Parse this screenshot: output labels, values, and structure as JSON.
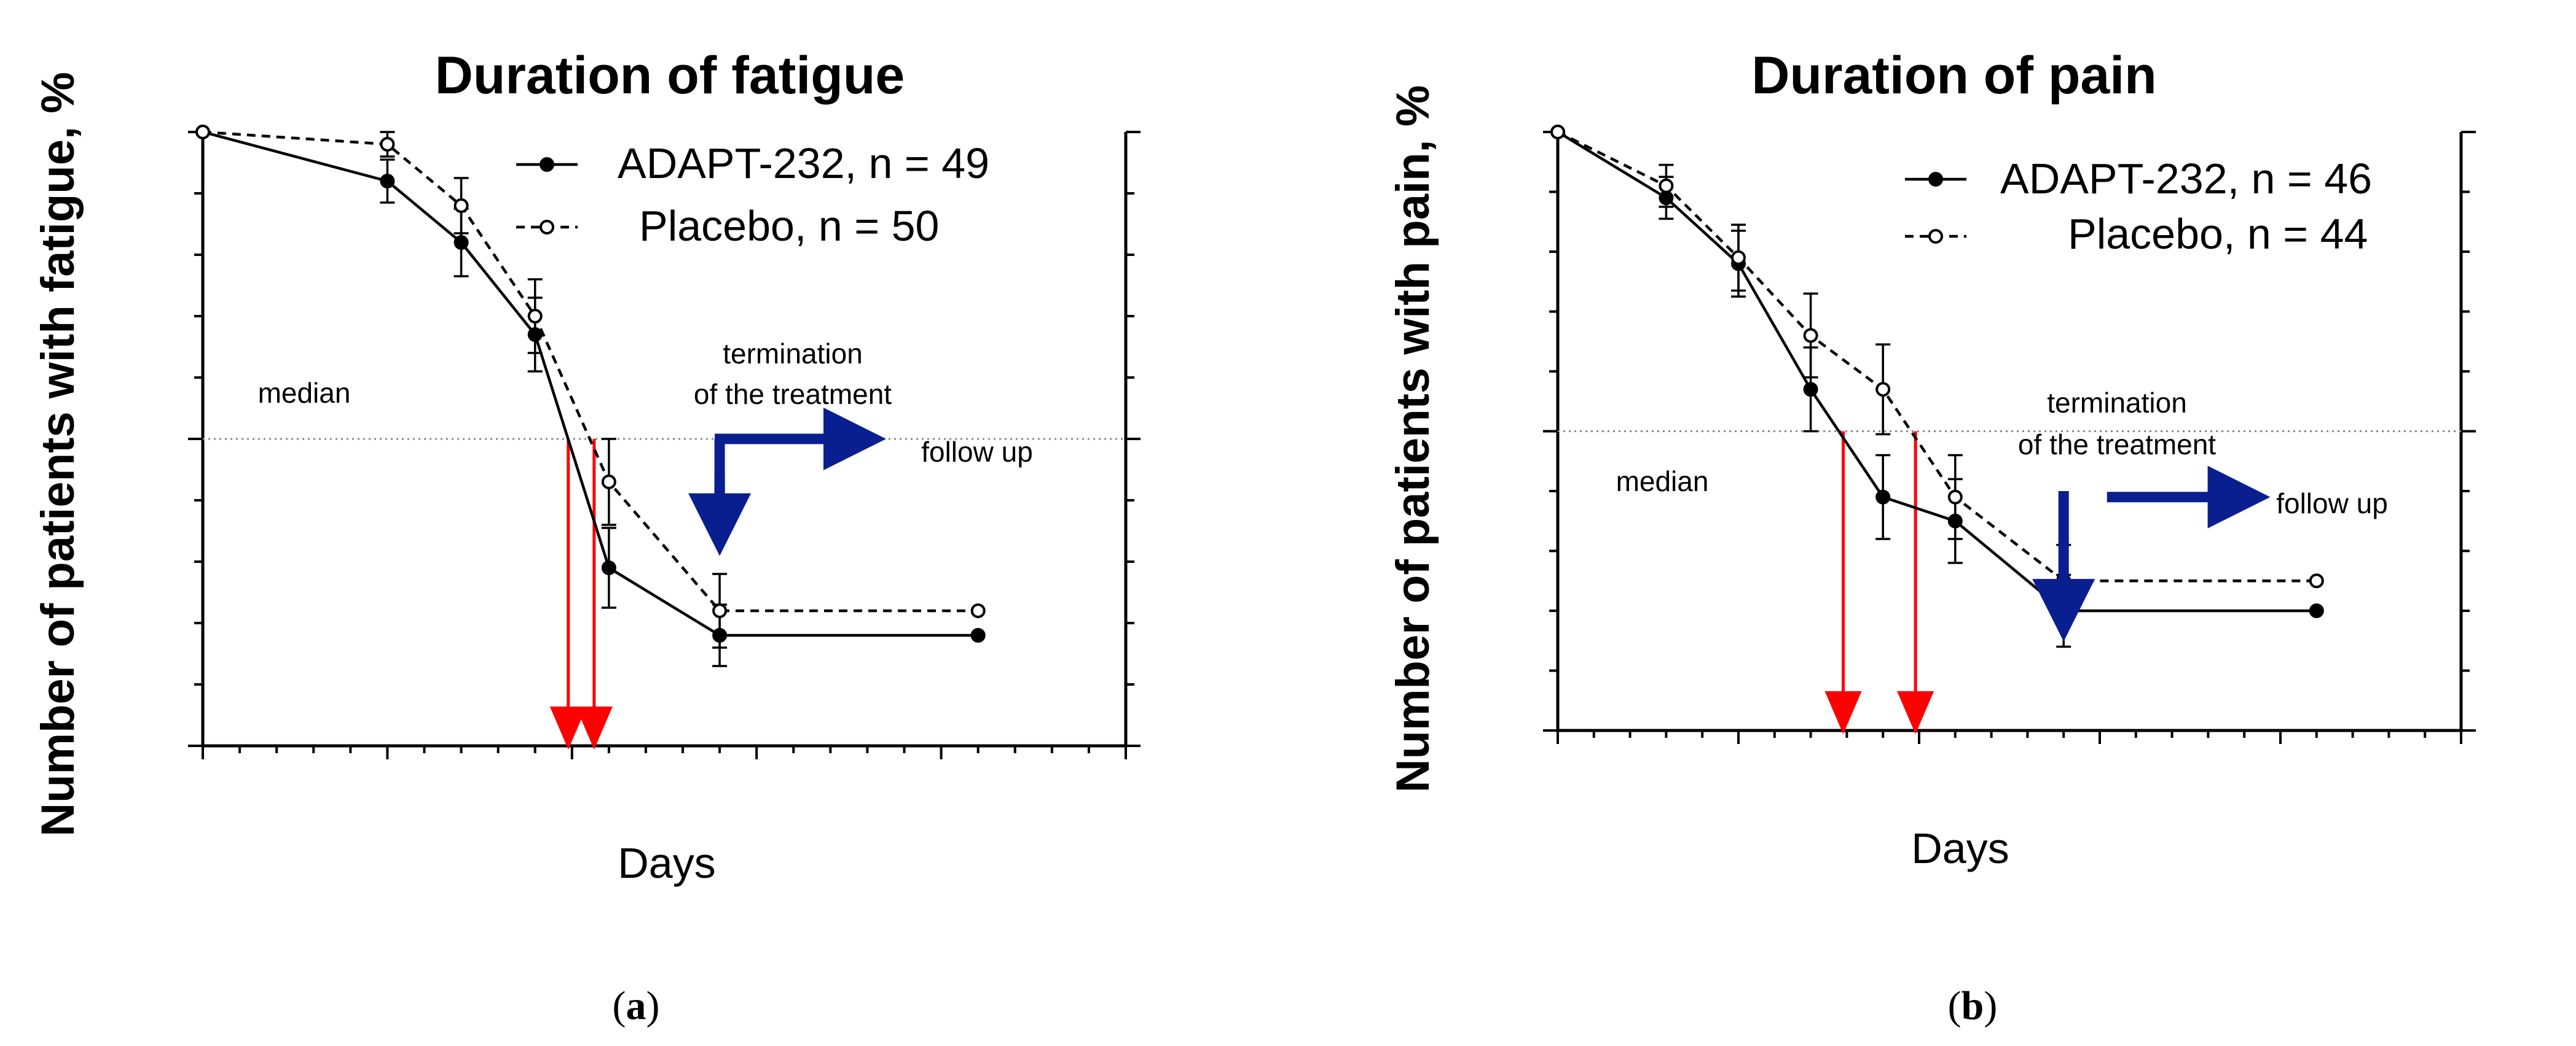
{
  "chart_data": [
    {
      "type": "line",
      "title": "Duration of fatigue",
      "xlabel": "Days",
      "ylabel": "Number of patients with fatigue, %",
      "xlim": [
        0,
        25
      ],
      "ylim": [
        0,
        100
      ],
      "xticks": [
        "0",
        "5",
        "10",
        "15",
        "20",
        "25"
      ],
      "yticks": [
        "0",
        "50",
        "100"
      ],
      "yticks_right": [
        "0",
        "50",
        "100"
      ],
      "median_y": 50,
      "median_label": "median",
      "grid": false,
      "legend_position": "top-right",
      "caption": {
        "open": "(",
        "letter": "a",
        "close": ")"
      },
      "series": [
        {
          "name": "ADAPT-232, n = 49",
          "style": "solid",
          "marker": "filled",
          "x": [
            0,
            5,
            7,
            9,
            11,
            14,
            21
          ],
          "y": [
            100,
            92,
            82,
            67,
            29,
            18,
            18
          ],
          "err": [
            0,
            3.5,
            5.5,
            6,
            6.5,
            5,
            0
          ]
        },
        {
          "name": "Placebo, n = 50",
          "style": "dashed",
          "marker": "open",
          "x": [
            0,
            5,
            7,
            9,
            11,
            14,
            21
          ],
          "y": [
            100,
            98,
            88,
            70,
            43,
            22,
            22
          ],
          "err": [
            0,
            2,
            4.5,
            6,
            7,
            6,
            0
          ]
        }
      ],
      "median_arrows_x": [
        9.9,
        10.6
      ],
      "star": {
        "text": "*",
        "x": 11.3,
        "y": 55
      },
      "termination": {
        "line1": "termination",
        "line2": "of the treatment",
        "x": 14
      },
      "follow_up": "follow up"
    },
    {
      "type": "line",
      "title": "Duration of pain",
      "xlabel": "Days",
      "ylabel": "Number of patients with pain, %",
      "xlim": [
        0,
        25
      ],
      "ylim": [
        0,
        100
      ],
      "xticks": [
        "0",
        "5",
        "10",
        "15",
        "20",
        "25"
      ],
      "yticks": [
        "0",
        "50",
        "100"
      ],
      "yticks_right": [
        "0",
        "50",
        "100"
      ],
      "median_y": 50,
      "median_label": "median",
      "grid": false,
      "legend_position": "top-right",
      "caption": {
        "open": "(",
        "letter": "b",
        "close": ")"
      },
      "series": [
        {
          "name": "ADAPT-232, n = 46",
          "style": "solid",
          "marker": "filled",
          "x": [
            0,
            3,
            5,
            7,
            9,
            11,
            14,
            21
          ],
          "y": [
            100,
            89,
            78,
            57,
            39,
            35,
            20,
            20
          ],
          "err": [
            0,
            3.5,
            5.5,
            7,
            7,
            7,
            6,
            0
          ]
        },
        {
          "name": "Placebo, n = 44",
          "style": "dashed",
          "marker": "open",
          "x": [
            0,
            3,
            5,
            7,
            9,
            11,
            14,
            21
          ],
          "y": [
            100,
            91,
            79,
            66,
            57,
            39,
            25,
            25
          ],
          "err": [
            0,
            3.5,
            5.5,
            7,
            7.5,
            7,
            6,
            0
          ]
        }
      ],
      "median_arrows_x": [
        7.9,
        9.9
      ],
      "star": {
        "text": "*",
        "x": 9,
        "y": 70
      },
      "termination": {
        "line1": "termination",
        "line2": "of the treatment",
        "x": 14
      },
      "follow_up": "follow up"
    }
  ],
  "colors": {
    "line": "#000000",
    "median_arrow": "#ff0000",
    "treatment_arrow": "#0a1f8f",
    "median_line": "#8a8a8a"
  }
}
